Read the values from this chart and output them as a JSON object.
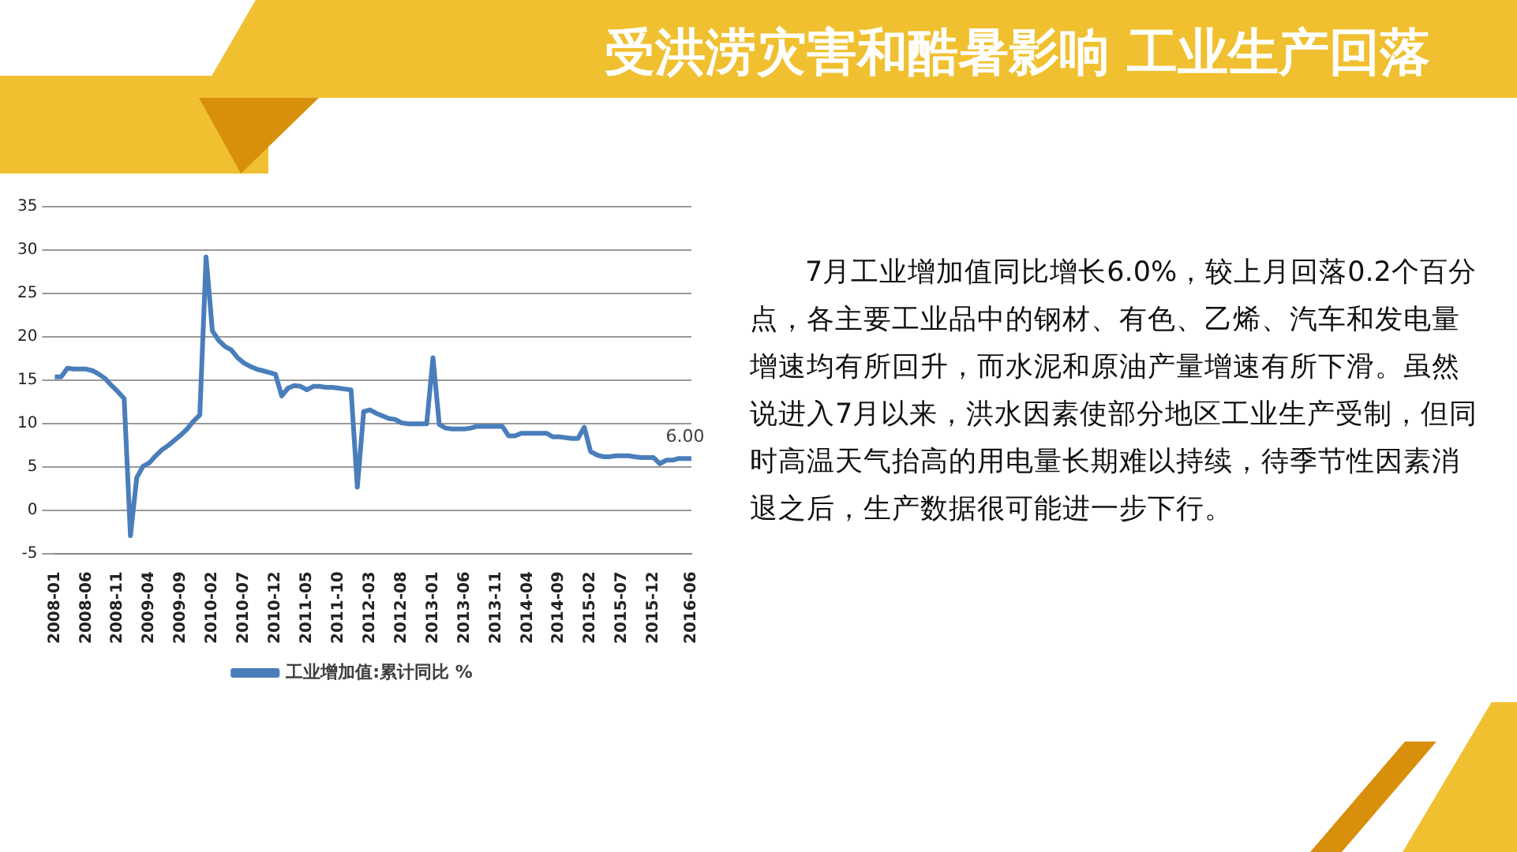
{
  "chart_data": {
    "type": "line",
    "title": "受洪涝灾害和酷暑影响 工业生产回落",
    "categories": [
      "2008-01",
      null,
      null,
      null,
      null,
      "2008-06",
      null,
      null,
      null,
      null,
      "2008-11",
      null,
      null,
      null,
      null,
      "2009-04",
      null,
      null,
      null,
      null,
      "2009-09",
      null,
      null,
      null,
      null,
      "2010-02",
      null,
      null,
      null,
      null,
      "2010-07",
      null,
      null,
      null,
      null,
      "2010-12",
      null,
      null,
      null,
      null,
      "2011-05",
      null,
      null,
      null,
      null,
      "2011-10",
      null,
      null,
      null,
      null,
      "2012-03",
      null,
      null,
      null,
      null,
      "2012-08",
      null,
      null,
      null,
      null,
      "2013-01",
      null,
      null,
      null,
      null,
      "2013-06",
      null,
      null,
      null,
      null,
      "2013-11",
      null,
      null,
      null,
      null,
      "2014-04",
      null,
      null,
      null,
      null,
      "2014-09",
      null,
      null,
      null,
      null,
      "2015-02",
      null,
      null,
      null,
      null,
      "2015-07",
      null,
      null,
      null,
      null,
      "2015-12",
      null,
      null,
      null,
      null,
      null,
      "2016-06"
    ],
    "series": [
      {
        "name": "工业增加值:累计同比 %",
        "color": "#4a7ebb",
        "values": [
          15.4,
          15.4,
          16.4,
          16.3,
          16.3,
          16.3,
          16.1,
          15.7,
          15.2,
          14.4,
          13.7,
          12.9,
          -2.9,
          3.8,
          5.1,
          5.5,
          6.3,
          7.0,
          7.5,
          8.1,
          8.7,
          9.4,
          10.3,
          11.0,
          29.2,
          20.7,
          19.6,
          18.9,
          18.5,
          17.6,
          17.0,
          16.6,
          16.3,
          16.1,
          15.9,
          15.7,
          13.2,
          14.1,
          14.4,
          14.3,
          13.9,
          14.3,
          14.3,
          14.2,
          14.2,
          14.1,
          14.0,
          13.9,
          2.7,
          11.4,
          11.6,
          11.2,
          10.9,
          10.6,
          10.5,
          10.1,
          10.0,
          10.0,
          10.0,
          10.0,
          17.6,
          9.9,
          9.5,
          9.4,
          9.4,
          9.4,
          9.5,
          9.7,
          9.7,
          9.7,
          9.7,
          9.7,
          8.6,
          8.6,
          8.9,
          8.9,
          8.9,
          8.9,
          8.9,
          8.5,
          8.5,
          8.4,
          8.3,
          8.3,
          9.6,
          6.8,
          6.4,
          6.2,
          6.2,
          6.3,
          6.3,
          6.3,
          6.2,
          6.1,
          6.1,
          6.1,
          5.4,
          5.8,
          5.8,
          6.0,
          6.0,
          6.0
        ],
        "value_labels": [
          null,
          null,
          null,
          null,
          null,
          null,
          null,
          null,
          null,
          null,
          null,
          null,
          null,
          null,
          null,
          null,
          null,
          null,
          null,
          null,
          null,
          null,
          null,
          null,
          null,
          null,
          null,
          null,
          null,
          null,
          null,
          null,
          null,
          null,
          null,
          null,
          null,
          null,
          null,
          null,
          null,
          null,
          null,
          null,
          null,
          null,
          null,
          null,
          null,
          null,
          null,
          null,
          null,
          null,
          null,
          null,
          null,
          null,
          null,
          null,
          null,
          null,
          null,
          null,
          null,
          null,
          null,
          null,
          null,
          null,
          null,
          null,
          null,
          null,
          null,
          null,
          null,
          null,
          null,
          null,
          null,
          null,
          null,
          null,
          null,
          null,
          null,
          null,
          null,
          null,
          null,
          null,
          null,
          null,
          null,
          null,
          null,
          null,
          null,
          null,
          null,
          "6.00"
        ]
      }
    ],
    "ylim": [
      -5,
      35
    ],
    "yticks": [
      -5,
      0,
      5,
      10,
      15,
      20,
      25,
      30,
      35
    ],
    "grid": "y",
    "legend": "bottom",
    "marker": "none",
    "line_style": "solid",
    "annotations": [
      "7月工业增加值同比增长6.0%，较上月回落0.2个百分点，各主要工业品中的钢材、有色、乙烯、汽车和发电量增速均有所回升，而水泥和原油产量增速有所下滑。虽然说进入7月以来，洪水因素使部分地区工业生产受制，但同时高温天气抬高的用电量长期难以持续，待季节性因素消退之后，生产数据很可能进一步下行。"
    ]
  }
}
